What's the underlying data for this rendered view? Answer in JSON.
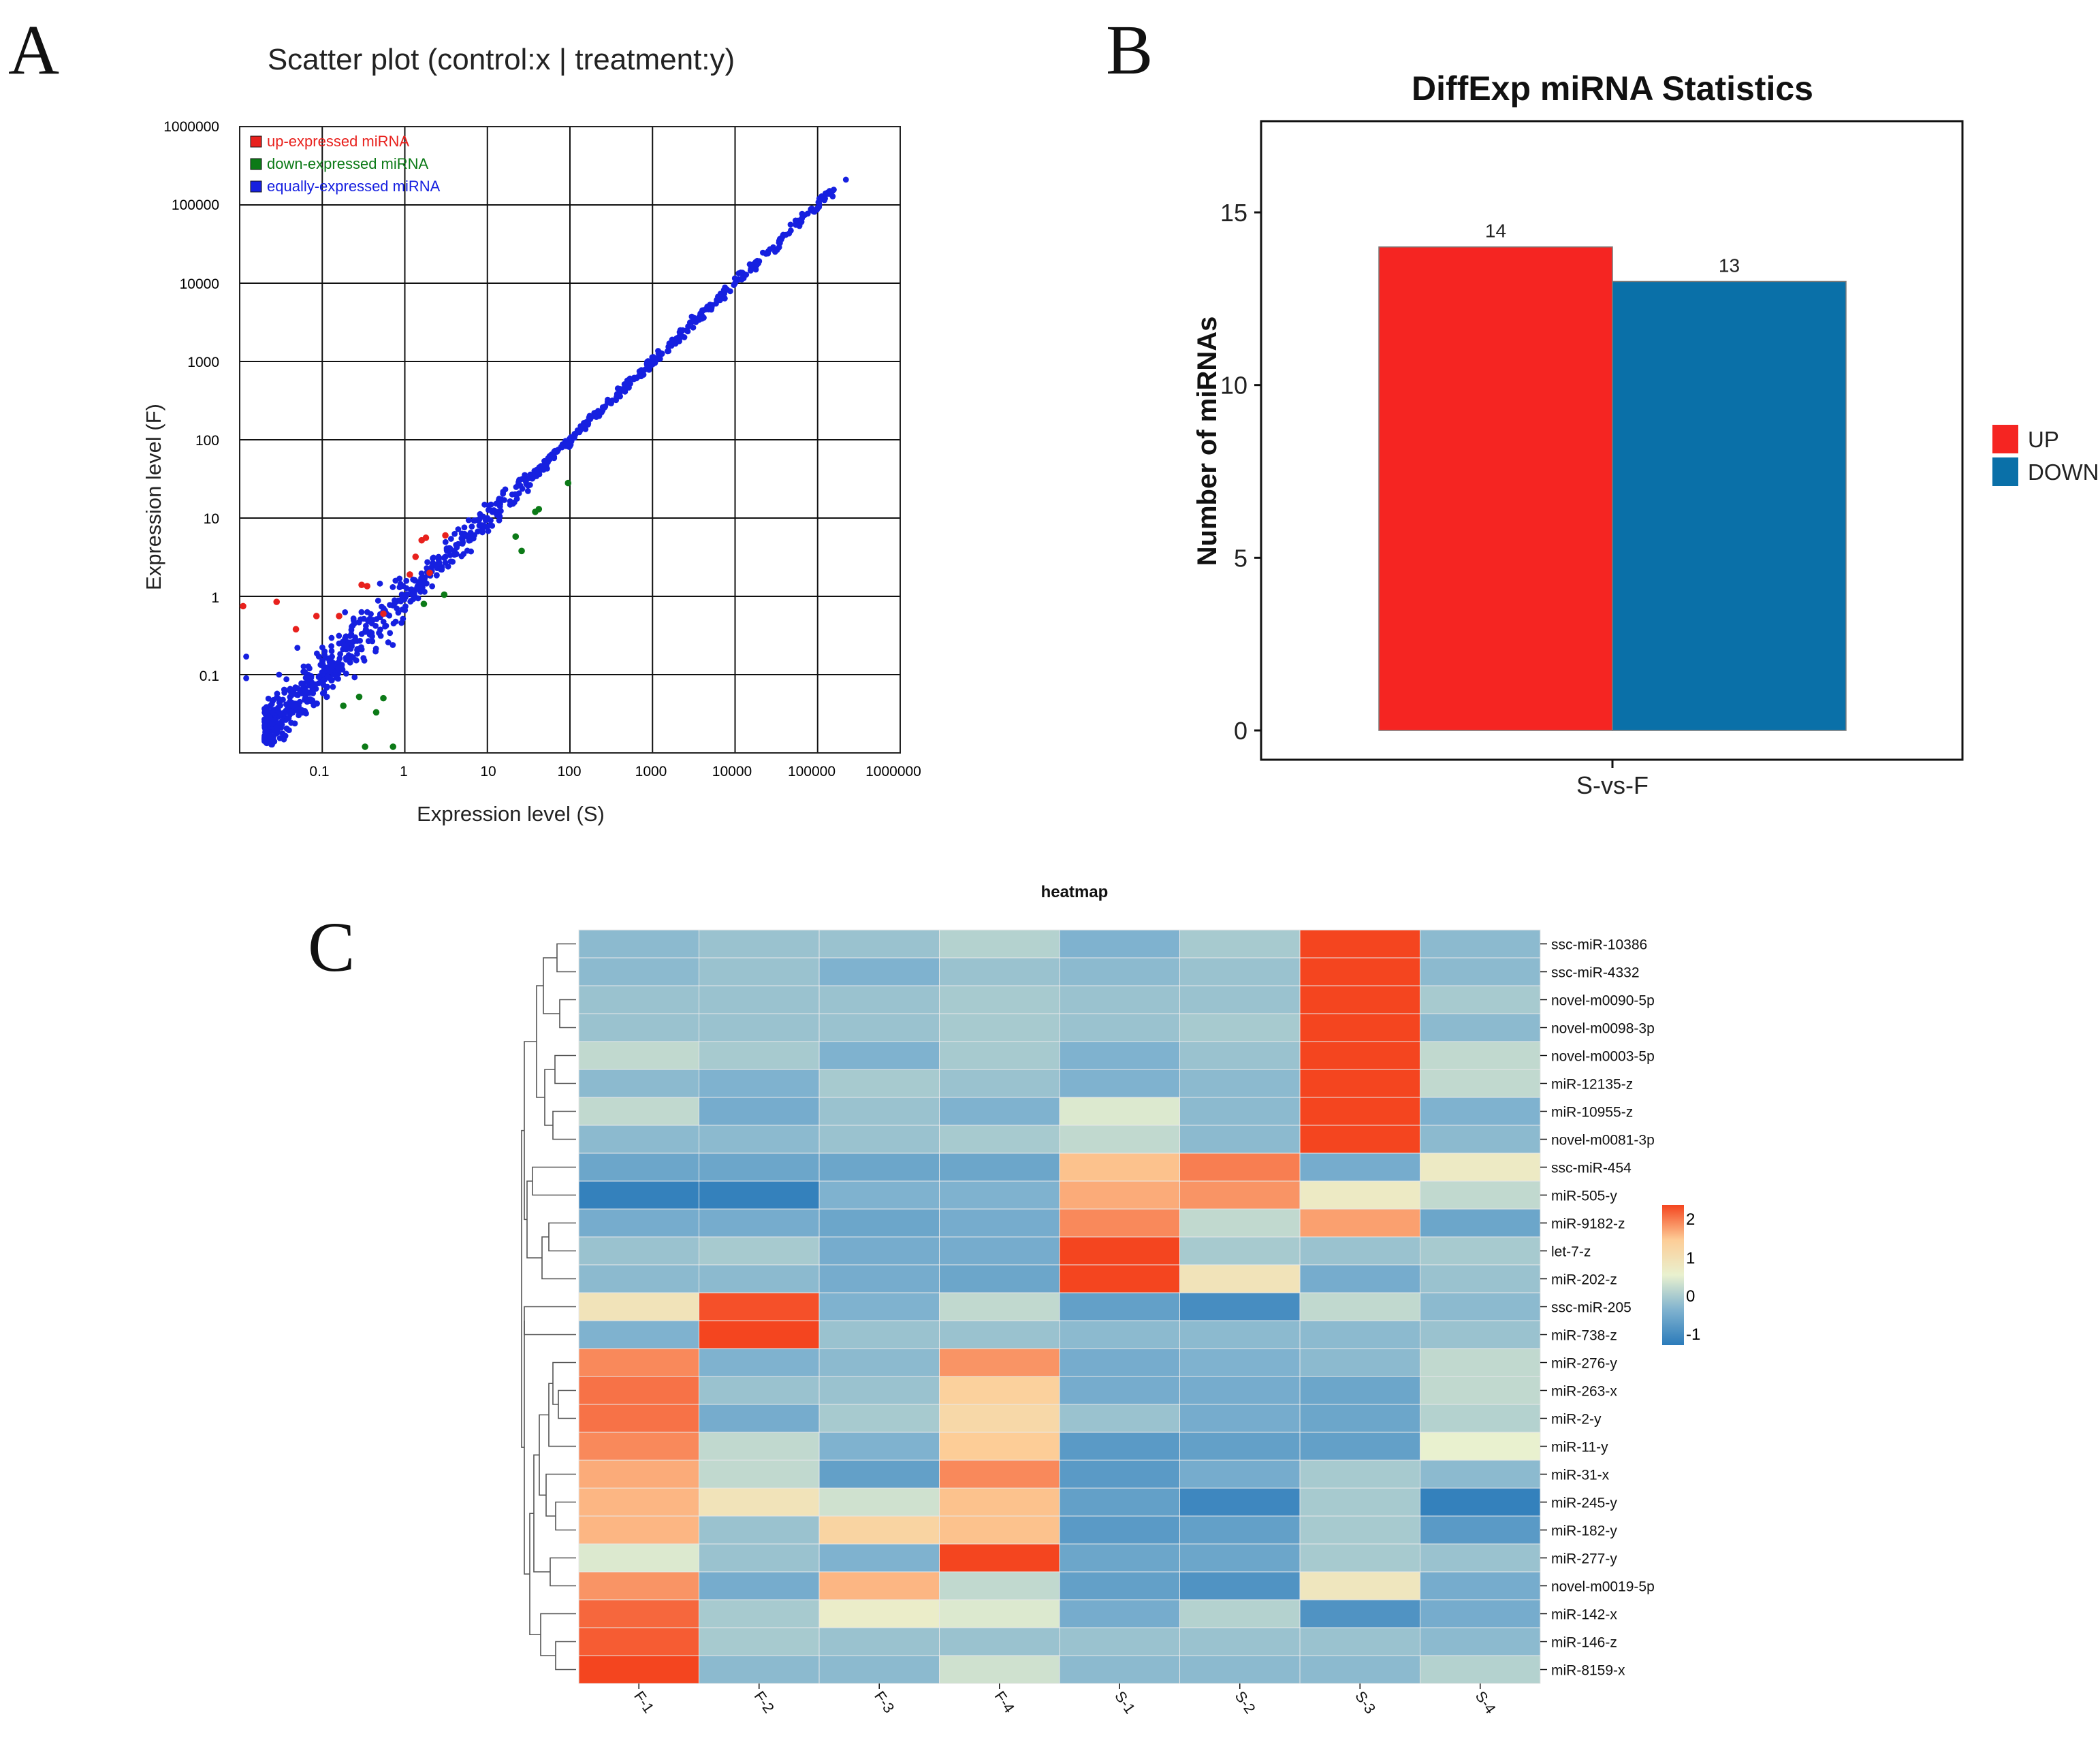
{
  "panels": {
    "a": "A",
    "b": "B",
    "c": "C"
  },
  "scatter": {
    "title": "Scatter plot (control:x | treatment:y)",
    "xlabel": "Expression level (S)",
    "ylabel": "Expression level (F)",
    "xticks": [
      "0.1",
      "1",
      "10",
      "100",
      "1000",
      "10000",
      "100000",
      "1000000"
    ],
    "yticks": [
      "0.1",
      "1",
      "10",
      "100",
      "1000",
      "10000",
      "100000",
      "1000000"
    ],
    "legend": [
      {
        "label": "up-expressed miRNA",
        "color": "#e8211d"
      },
      {
        "label": "down-expressed miRNA",
        "color": "#0c7a17"
      },
      {
        "label": "equally-expressed miRNA",
        "color": "#1620e0"
      }
    ]
  },
  "heatmap": {
    "title": "heatmap",
    "columns": [
      "F-1",
      "F-2",
      "F-3",
      "F-4",
      "S-1",
      "S-2",
      "S-3",
      "S-4"
    ],
    "rows": [
      "ssc-miR-10386",
      "ssc-miR-4332",
      "novel-m0090-5p",
      "novel-m0098-3p",
      "novel-m0003-5p",
      "miR-12135-z",
      "miR-10955-z",
      "novel-m0081-3p",
      "ssc-miR-454",
      "miR-505-y",
      "miR-9182-z",
      "let-7-z",
      "miR-202-z",
      "ssc-miR-205",
      "miR-738-z",
      "miR-276-y",
      "miR-263-x",
      "miR-2-y",
      "miR-11-y",
      "miR-31-x",
      "miR-245-y",
      "miR-182-y",
      "miR-277-y",
      "novel-m0019-5p",
      "miR-142-x",
      "miR-146-z",
      "miR-8159-x"
    ],
    "values": [
      [
        -0.5,
        -0.4,
        -0.4,
        -0.2,
        -0.6,
        -0.3,
        2.4,
        -0.5
      ],
      [
        -0.5,
        -0.4,
        -0.6,
        -0.4,
        -0.5,
        -0.4,
        2.4,
        -0.5
      ],
      [
        -0.4,
        -0.4,
        -0.4,
        -0.3,
        -0.4,
        -0.4,
        2.4,
        -0.3
      ],
      [
        -0.4,
        -0.4,
        -0.4,
        -0.3,
        -0.4,
        -0.3,
        2.4,
        -0.5
      ],
      [
        -0.1,
        -0.3,
        -0.6,
        -0.3,
        -0.6,
        -0.4,
        2.4,
        -0.1
      ],
      [
        -0.5,
        -0.6,
        -0.3,
        -0.4,
        -0.6,
        -0.5,
        2.4,
        -0.1
      ],
      [
        -0.1,
        -0.7,
        -0.4,
        -0.6,
        0.1,
        -0.5,
        2.4,
        -0.6
      ],
      [
        -0.5,
        -0.5,
        -0.4,
        -0.3,
        -0.1,
        -0.5,
        2.4,
        -0.5
      ],
      [
        -0.8,
        -0.8,
        -0.8,
        -0.8,
        1.3,
        1.9,
        -0.7,
        0.4
      ],
      [
        -1.4,
        -1.4,
        -0.6,
        -0.6,
        1.5,
        1.7,
        0.4,
        -0.1
      ],
      [
        -0.7,
        -0.7,
        -0.8,
        -0.7,
        1.8,
        -0.1,
        1.6,
        -0.8
      ],
      [
        -0.4,
        -0.3,
        -0.7,
        -0.7,
        2.4,
        -0.3,
        -0.4,
        -0.3
      ],
      [
        -0.5,
        -0.5,
        -0.7,
        -0.8,
        2.4,
        0.6,
        -0.7,
        -0.4
      ],
      [
        0.6,
        2.3,
        -0.6,
        -0.1,
        -0.9,
        -1.2,
        -0.1,
        -0.5
      ],
      [
        -0.6,
        2.4,
        -0.4,
        -0.4,
        -0.5,
        -0.5,
        -0.5,
        -0.4
      ],
      [
        1.8,
        -0.6,
        -0.5,
        1.7,
        -0.7,
        -0.6,
        -0.5,
        -0.1
      ],
      [
        2.0,
        -0.4,
        -0.4,
        1.1,
        -0.7,
        -0.7,
        -0.8,
        -0.1
      ],
      [
        2.0,
        -0.7,
        -0.3,
        0.9,
        -0.4,
        -0.7,
        -0.8,
        -0.2
      ],
      [
        1.8,
        -0.1,
        -0.6,
        1.2,
        -1.0,
        -0.9,
        -0.9,
        0.2
      ],
      [
        1.5,
        -0.1,
        -0.9,
        1.8,
        -1.0,
        -0.7,
        -0.3,
        -0.5
      ],
      [
        1.4,
        0.6,
        0.0,
        1.3,
        -0.9,
        -1.3,
        -0.3,
        -1.4
      ],
      [
        1.4,
        -0.4,
        1.0,
        1.3,
        -1.0,
        -0.9,
        -0.3,
        -1.0
      ],
      [
        0.1,
        -0.4,
        -0.6,
        2.4,
        -0.8,
        -0.8,
        -0.3,
        -0.4
      ],
      [
        1.7,
        -0.7,
        1.4,
        -0.1,
        -0.9,
        -1.1,
        0.5,
        -0.7
      ],
      [
        2.1,
        -0.3,
        0.3,
        0.1,
        -0.7,
        -0.2,
        -1.1,
        -0.7
      ],
      [
        2.2,
        -0.3,
        -0.4,
        -0.4,
        -0.4,
        -0.4,
        -0.4,
        -0.5
      ],
      [
        2.4,
        -0.5,
        -0.5,
        0.0,
        -0.5,
        -0.5,
        -0.5,
        -0.2
      ]
    ],
    "scale": {
      "ticks": [
        "2",
        "1",
        "0",
        "-1"
      ],
      "colors": [
        "#2b7bba",
        "#7fb2cf",
        "#e9f1cf",
        "#fdcd97",
        "#f4451f"
      ]
    }
  },
  "chart_data": [
    {
      "type": "scatter",
      "title": "Scatter plot (control:x | treatment:y)",
      "xlabel": "Expression level (S)",
      "ylabel": "Expression level (F)",
      "xscale": "log",
      "yscale": "log",
      "xlim": [
        0.01,
        1000000
      ],
      "ylim": [
        0.01,
        1000000
      ],
      "grid": true,
      "legend_position": "top-left",
      "series": [
        {
          "name": "up-expressed miRNA",
          "color": "#e8211d",
          "points": [
            [
              0.011,
              0.75
            ],
            [
              0.028,
              0.85
            ],
            [
              0.048,
              0.38
            ],
            [
              0.085,
              0.56
            ],
            [
              0.16,
              0.56
            ],
            [
              0.3,
              1.4
            ],
            [
              0.35,
              1.35
            ],
            [
              0.55,
              0.6
            ],
            [
              1.15,
              1.9
            ],
            [
              1.35,
              3.2
            ],
            [
              1.6,
              5.2
            ],
            [
              1.8,
              5.6
            ],
            [
              2.0,
              2.0
            ],
            [
              3.1,
              6.0
            ]
          ]
        },
        {
          "name": "down-expressed miRNA",
          "color": "#0c7a17",
          "points": [
            [
              0.18,
              0.04
            ],
            [
              0.28,
              0.052
            ],
            [
              0.45,
              0.033
            ],
            [
              0.55,
              0.05
            ],
            [
              1.7,
              0.8
            ],
            [
              3.0,
              1.05
            ],
            [
              22,
              5.8
            ],
            [
              26,
              3.8
            ],
            [
              38,
              12
            ],
            [
              42,
              13
            ],
            [
              95,
              28
            ],
            [
              0.33,
              0.012
            ],
            [
              0.72,
              0.012
            ]
          ]
        },
        {
          "name": "equally-expressed miRNA",
          "color": "#1620e0",
          "points": [
            [
              0.012,
              0.09
            ],
            [
              0.012,
              0.17
            ],
            [
              0.03,
              0.1
            ],
            [
              0.05,
              0.22
            ],
            [
              0.07,
              0.12
            ],
            [
              0.1,
              0.15
            ],
            [
              0.13,
              0.2
            ],
            [
              0.16,
              0.25
            ],
            [
              0.2,
              0.22
            ],
            [
              0.25,
              0.3
            ],
            [
              0.3,
              0.33
            ],
            [
              0.4,
              0.45
            ],
            [
              0.5,
              0.55
            ],
            [
              0.6,
              0.6
            ],
            [
              0.8,
              0.7
            ],
            [
              1,
              1
            ],
            [
              1.3,
              1.2
            ],
            [
              1.6,
              1.7
            ],
            [
              2,
              2
            ],
            [
              2.5,
              2.6
            ],
            [
              3,
              3.1
            ],
            [
              4,
              3.8
            ],
            [
              5,
              5.2
            ],
            [
              6,
              6
            ],
            [
              8,
              8
            ],
            [
              10,
              10
            ],
            [
              13,
              12
            ],
            [
              16,
              17
            ],
            [
              20,
              20
            ],
            [
              25,
              26
            ],
            [
              30,
              32
            ],
            [
              40,
              40
            ],
            [
              50,
              48
            ],
            [
              60,
              65
            ],
            [
              80,
              80
            ],
            [
              100,
              100
            ],
            [
              130,
              125
            ],
            [
              160,
              170
            ],
            [
              200,
              200
            ],
            [
              250,
              260
            ],
            [
              300,
              310
            ],
            [
              400,
              390
            ],
            [
              500,
              520
            ],
            [
              600,
              620
            ],
            [
              800,
              780
            ],
            [
              1000,
              1000
            ],
            [
              1300,
              1250
            ],
            [
              1600,
              1700
            ],
            [
              2000,
              2000
            ],
            [
              2600,
              2500
            ],
            [
              3000,
              3200
            ],
            [
              4000,
              3800
            ],
            [
              5000,
              5200
            ],
            [
              6000,
              6100
            ],
            [
              8000,
              8300
            ],
            [
              10000,
              10000
            ],
            [
              16000,
              17000
            ],
            [
              25000,
              24000
            ],
            [
              60000,
              55000
            ],
            [
              85000,
              90000
            ],
            [
              110000,
              120000
            ],
            [
              220000,
              210000
            ]
          ]
        }
      ]
    },
    {
      "type": "bar",
      "title": "DiffExp miRNA Statistics",
      "xlabel": "",
      "ylabel": "Number of miRNAs",
      "categories": [
        "S-vs-F"
      ],
      "series": [
        {
          "name": "UP",
          "color": "#f52522",
          "values": [
            14
          ]
        },
        {
          "name": "DOWN",
          "color": "#0a70a8",
          "values": [
            13
          ]
        }
      ],
      "data_labels": [
        "14",
        "13"
      ],
      "ylim": [
        0,
        17.5
      ],
      "yticks": [
        "0",
        "5",
        "10",
        "15"
      ],
      "grid": false,
      "legend_position": "right"
    },
    {
      "type": "heatmap",
      "title": "heatmap",
      "x": [
        "F-1",
        "F-2",
        "F-3",
        "F-4",
        "S-1",
        "S-2",
        "S-3",
        "S-4"
      ],
      "y": [
        "ssc-miR-10386",
        "ssc-miR-4332",
        "novel-m0090-5p",
        "novel-m0098-3p",
        "novel-m0003-5p",
        "miR-12135-z",
        "miR-10955-z",
        "novel-m0081-3p",
        "ssc-miR-454",
        "miR-505-y",
        "miR-9182-z",
        "let-7-z",
        "miR-202-z",
        "ssc-miR-205",
        "miR-738-z",
        "miR-276-y",
        "miR-263-x",
        "miR-2-y",
        "miR-11-y",
        "miR-31-x",
        "miR-245-y",
        "miR-182-y",
        "miR-277-y",
        "novel-m0019-5p",
        "miR-142-x",
        "miR-146-z",
        "miR-8159-x"
      ],
      "color_range": [
        -1.5,
        2.4
      ],
      "colorbar_ticks": [
        "2",
        "1",
        "0",
        "-1"
      ]
    }
  ]
}
